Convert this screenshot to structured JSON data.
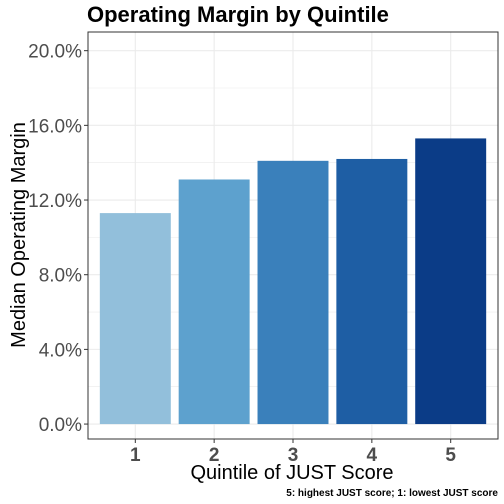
{
  "chart_data": {
    "type": "bar",
    "title": "Operating Margin by Quintile",
    "xlabel": "Quintile of JUST Score",
    "ylabel": "Median Operating Margin",
    "caption": "5: highest JUST score; 1: lowest JUST score",
    "categories": [
      "1",
      "2",
      "3",
      "4",
      "5"
    ],
    "values": [
      0.113,
      0.131,
      0.141,
      0.142,
      0.153
    ],
    "colors": [
      "#92bfdb",
      "#5da1ce",
      "#3a80bb",
      "#1e5ea4",
      "#0b3c87"
    ],
    "ylim": [
      -0.008,
      0.21
    ],
    "yticks": [
      0.0,
      0.04,
      0.08,
      0.12,
      0.16,
      0.2
    ],
    "ytick_labels": [
      "0.0%",
      "4.0%",
      "8.0%",
      "12.0%",
      "16.0%",
      "20.0%"
    ],
    "grid": true,
    "legend": "none",
    "background": "#ffffff",
    "grid_color": "#ebebeb",
    "panel_border_color": "#333333"
  }
}
